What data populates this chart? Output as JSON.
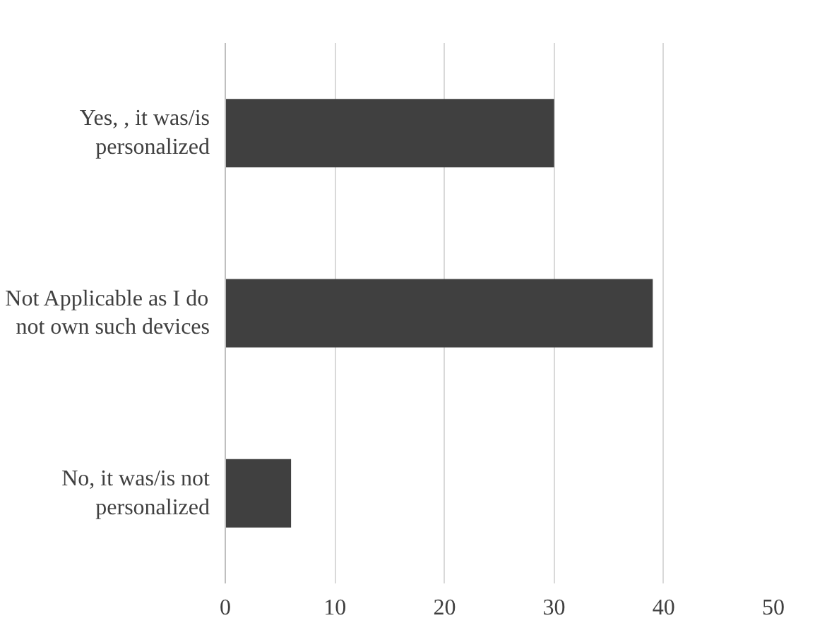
{
  "chart_data": {
    "type": "bar",
    "orientation": "horizontal",
    "categories": [
      "Yes, , it was/is\npersonalized",
      "Not Applicable as I do\nnot own such devices",
      "No, it was/is not\npersonalized"
    ],
    "values": [
      30,
      39,
      6
    ],
    "color": "#404040",
    "xlim": [
      0,
      50
    ],
    "xticks": [
      0,
      10,
      20,
      30,
      40,
      50
    ],
    "grid": "x"
  }
}
